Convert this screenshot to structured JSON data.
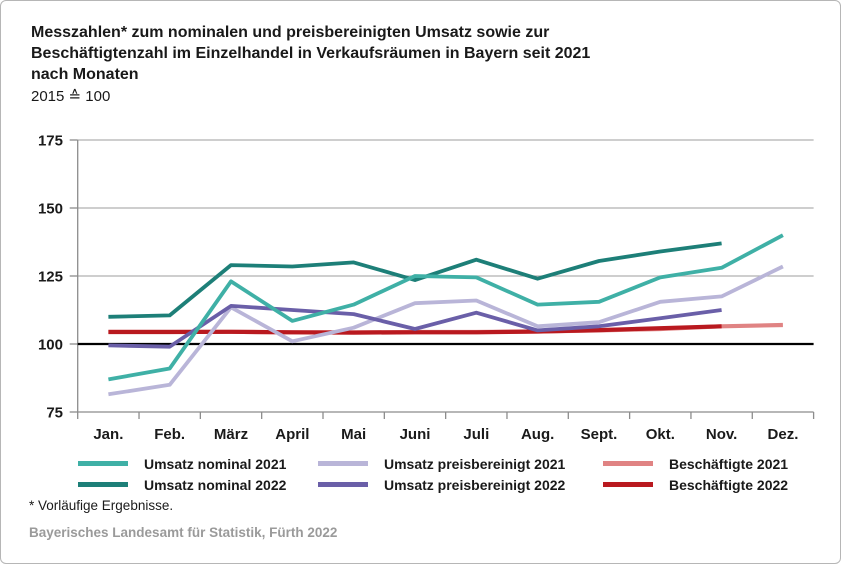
{
  "header": {
    "title_lines": [
      "Messzahlen* zum nominalen und preisbereinigten Umsatz sowie zur",
      "Beschäftigtenzahl im Einzelhandel in Verkaufsräumen in Bayern seit 2021",
      "nach Monaten"
    ],
    "subtitle": "2015 ≙ 100"
  },
  "chart_data": {
    "type": "line",
    "categories": [
      "Jan.",
      "Feb.",
      "März",
      "April",
      "Mai",
      "Juni",
      "Juli",
      "Aug.",
      "Sept.",
      "Okt.",
      "Nov.",
      "Dez."
    ],
    "ylim": [
      75,
      175
    ],
    "yticks": [
      75,
      100,
      125,
      150,
      175
    ],
    "baseline": 100,
    "grid": true,
    "legend_position": "bottom",
    "series": [
      {
        "name": "Umsatz nominal 2021",
        "color": "#3fb0a6",
        "width": 3.8,
        "values": [
          87,
          91,
          123,
          108.5,
          114.5,
          125,
          124.5,
          114.5,
          115.5,
          124.5,
          128,
          140
        ]
      },
      {
        "name": "Umsatz nominal 2022",
        "color": "#1d7f78",
        "width": 3.8,
        "values": [
          110,
          110.5,
          129,
          128.5,
          130,
          123.5,
          131,
          124,
          130.5,
          134,
          137,
          null
        ]
      },
      {
        "name": "Umsatz preisbereinigt 2021",
        "color": "#b9b5d8",
        "width": 3.8,
        "values": [
          81.5,
          85,
          113.5,
          101,
          106,
          115,
          116,
          106.5,
          108,
          115.5,
          117.5,
          128.5
        ]
      },
      {
        "name": "Umsatz preisbereinigt 2022",
        "color": "#6a5fa8",
        "width": 3.8,
        "values": [
          99.5,
          99,
          114,
          112.5,
          111,
          105.5,
          111.5,
          105,
          106.5,
          109.5,
          112.5,
          null
        ]
      },
      {
        "name": "Beschäftigte 2021",
        "color": "#e08383",
        "width": 4.2,
        "values": [
          104.5,
          104.5,
          104.5,
          104.3,
          104.3,
          104.4,
          104.4,
          104.6,
          105,
          105.5,
          106.5,
          107
        ]
      },
      {
        "name": "Beschäftigte 2022",
        "color": "#b9191f",
        "width": 4.2,
        "values": [
          104.4,
          104.4,
          104.5,
          104.3,
          104.2,
          104.3,
          104.3,
          104.6,
          105.1,
          105.8,
          106.5,
          null
        ]
      }
    ],
    "colors": {
      "grid": "#b0b0b0",
      "axis": "#8c8c8c",
      "baseline": "#000000",
      "text": "#1a1a1a"
    }
  },
  "footer": {
    "footnote": "* Vorläufige Ergebnisse.",
    "source": "Bayerisches Landesamt für Statistik, Fürth 2022"
  }
}
